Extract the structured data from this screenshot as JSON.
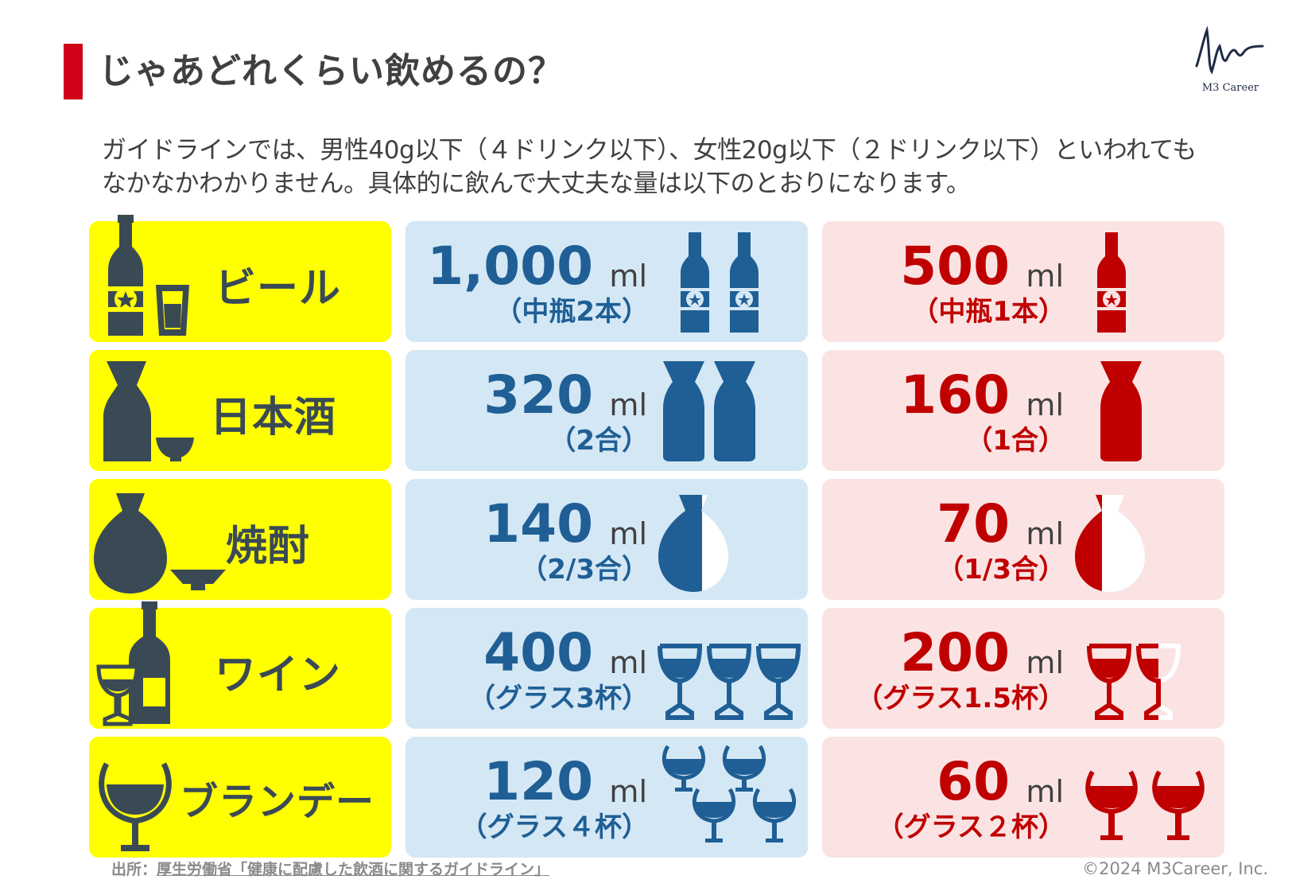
{
  "header": {
    "title": "じゃあどれくらい飲めるの？",
    "logo_text": "M3 Career"
  },
  "intro": "ガイドラインでは、男性40g以下（４ドリンク以下）、女性20g以下（２ドリンク以下）といわれてもなかなかわかりません。具体的に飲んで大丈夫な量は以下のとおりになります。",
  "colors": {
    "accent_red": "#d0021b",
    "drink_bg": "#ffff00",
    "male_bg": "#d4e7f5",
    "female_bg": "#fbe3e3",
    "male_text": "#1f5f95",
    "female_text": "#c00000",
    "icon_dark": "#3a4a55"
  },
  "rows": [
    {
      "drink": "ビール",
      "drink_icon": "beer-bottle-and-glass-icon",
      "male": {
        "amount": "1,000",
        "unit": "ml",
        "portion": "（中瓶2本）",
        "icon": "beer-bottle-icon",
        "count": 2
      },
      "female": {
        "amount": "500",
        "unit": "ml",
        "portion": "（中瓶1本）",
        "icon": "beer-bottle-icon",
        "count": 1
      }
    },
    {
      "drink": "日本酒",
      "drink_icon": "tokkuri-and-cup-icon",
      "male": {
        "amount": "320",
        "unit": "ml",
        "portion": "（2合）",
        "icon": "tokkuri-icon",
        "count": 2
      },
      "female": {
        "amount": "160",
        "unit": "ml",
        "portion": "（1合）",
        "icon": "tokkuri-icon",
        "count": 1
      }
    },
    {
      "drink": "焼酎",
      "drink_icon": "shochu-bottle-and-cup-icon",
      "male": {
        "amount": "140",
        "unit": "ml",
        "portion": "（2/3合）",
        "icon": "shochu-flask-icon",
        "count": 0.667
      },
      "female": {
        "amount": "70",
        "unit": "ml",
        "portion": "（1/3合）",
        "icon": "shochu-flask-icon",
        "count": 0.333
      }
    },
    {
      "drink": "ワイン",
      "drink_icon": "wine-bottle-and-glass-icon",
      "male": {
        "amount": "400",
        "unit": "ml",
        "portion": "（グラス3杯）",
        "icon": "wine-glass-icon",
        "count": 3
      },
      "female": {
        "amount": "200",
        "unit": "ml",
        "portion": "（グラス1.5杯）",
        "icon": "wine-glass-icon",
        "count": 1.5
      }
    },
    {
      "drink": "ブランデー",
      "drink_icon": "brandy-glass-icon",
      "male": {
        "amount": "120",
        "unit": "ml",
        "portion": "（グラス４杯）",
        "icon": "brandy-glass-icon",
        "count": 4
      },
      "female": {
        "amount": "60",
        "unit": "ml",
        "portion": "（グラス２杯）",
        "icon": "brandy-glass-icon",
        "count": 2
      }
    }
  ],
  "footer": {
    "source_label": "出所：",
    "source_link": "厚生労働省「健康に配慮した飲酒に関するガイドライン」",
    "copyright": "©2024 M3Career, Inc."
  }
}
